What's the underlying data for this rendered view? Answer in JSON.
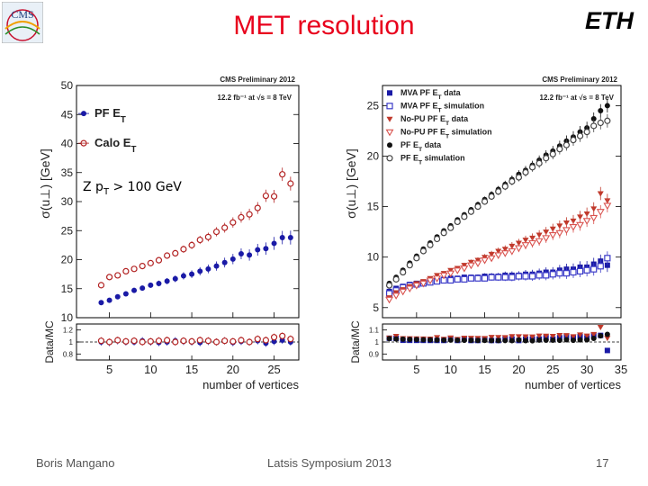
{
  "slide": {
    "title": "MET resolution",
    "footer_left": "Boris Mangano",
    "footer_center": "Latsis Symposium 2013",
    "footer_right": "17",
    "logo_left": "CMS",
    "logo_right": "ETH",
    "title_color": "#e8001c"
  },
  "chart_data": [
    {
      "type": "scatter",
      "title": "CMS Preliminary 2012",
      "lumi": "12.2 fb⁻¹ at √s = 8 TeV",
      "annotation": "Z p",
      "annotation_sub": "T",
      "annotation_tail": " > 100 GeV",
      "ylabel": "σ(u⊥) [GeV]",
      "ratio_ylabel": "Data/MC",
      "xlabel": "number of vertices",
      "xlim": [
        1,
        28
      ],
      "ylim": [
        10,
        50
      ],
      "ratio_ylim": [
        0.7,
        1.3
      ],
      "xticks": [
        5,
        10,
        15,
        20,
        25
      ],
      "yticks": [
        10,
        15,
        20,
        25,
        30,
        35,
        40,
        45,
        50
      ],
      "ratio_yticks": [
        "0.8",
        "1",
        "1.2"
      ],
      "legend_position": "top-left",
      "series": [
        {
          "name": "PF ET",
          "marker": "filled-circle",
          "color": "#1a1aa6",
          "x": [
            4,
            5,
            6,
            7,
            8,
            9,
            10,
            11,
            12,
            13,
            14,
            15,
            16,
            17,
            18,
            19,
            20,
            21,
            22,
            23,
            24,
            25,
            26,
            27
          ],
          "y": [
            12.6,
            13.0,
            13.6,
            14.1,
            14.7,
            15.1,
            15.6,
            15.9,
            16.3,
            16.7,
            17.2,
            17.5,
            18.0,
            18.4,
            18.9,
            19.5,
            20.1,
            21.0,
            20.8,
            21.7,
            21.9,
            22.8,
            23.8,
            23.8
          ],
          "ratio": [
            1.0,
            0.99,
            1.02,
            1.0,
            1.0,
            1.02,
            1.0,
            0.99,
            1.0,
            1.02,
            1.01,
            1.0,
            0.99,
            1.01,
            1.0,
            1.02,
            0.99,
            1.01,
            1.0,
            1.02,
            0.98,
            1.01,
            1.03,
            1.0
          ]
        },
        {
          "name": "Calo ET",
          "marker": "open-circle",
          "color": "#b22222",
          "x": [
            4,
            5,
            6,
            7,
            8,
            9,
            10,
            11,
            12,
            13,
            14,
            15,
            16,
            17,
            18,
            19,
            20,
            21,
            22,
            23,
            24,
            25,
            26,
            27
          ],
          "y": [
            15.6,
            17.0,
            17.3,
            18.0,
            18.4,
            18.9,
            19.4,
            19.9,
            20.7,
            21.1,
            21.8,
            22.5,
            23.4,
            23.9,
            24.8,
            25.5,
            26.4,
            27.3,
            27.8,
            28.9,
            31.0,
            30.9,
            34.7,
            33.1
          ],
          "ratio": [
            1.02,
            1.0,
            1.03,
            1.01,
            1.02,
            1.0,
            1.01,
            1.02,
            1.03,
            1.0,
            1.02,
            1.01,
            1.03,
            1.02,
            1.0,
            1.02,
            1.01,
            1.03,
            1.0,
            1.05,
            1.03,
            1.08,
            1.1,
            1.05
          ]
        }
      ]
    },
    {
      "type": "scatter",
      "title": "CMS Preliminary 2012",
      "lumi": "12.2 fb⁻¹ at √s = 8 TeV",
      "ylabel": "σ(u⊥) [GeV]",
      "ratio_ylabel": "Data/MC",
      "xlabel": "number of vertices",
      "xlim": [
        0,
        35
      ],
      "ylim": [
        4,
        27
      ],
      "ratio_ylim": [
        0.85,
        1.15
      ],
      "xticks": [
        5,
        10,
        15,
        20,
        25,
        30,
        35
      ],
      "yticks": [
        5,
        10,
        15,
        20,
        25
      ],
      "ratio_yticks": [
        "0.9",
        "1",
        "1.1"
      ],
      "legend_position": "top-left",
      "series": [
        {
          "name": "MVA PF ET data",
          "marker": "filled-square",
          "color": "#1a1aa6",
          "x": [
            1,
            2,
            3,
            4,
            5,
            6,
            7,
            8,
            9,
            10,
            11,
            12,
            13,
            14,
            15,
            16,
            17,
            18,
            19,
            20,
            21,
            22,
            23,
            24,
            25,
            26,
            27,
            28,
            29,
            30,
            31,
            32,
            33
          ],
          "y": [
            6.6,
            6.9,
            7.1,
            7.3,
            7.4,
            7.5,
            7.6,
            7.7,
            7.8,
            7.9,
            7.9,
            8.0,
            8.0,
            8.0,
            8.1,
            8.1,
            8.1,
            8.2,
            8.2,
            8.2,
            8.3,
            8.3,
            8.4,
            8.5,
            8.5,
            8.7,
            8.8,
            8.8,
            9.0,
            9.0,
            9.3,
            9.6,
            9.2
          ]
        },
        {
          "name": "MVA PF ET simulation",
          "marker": "open-square",
          "color": "#3b3bc8",
          "x": [
            1,
            2,
            3,
            4,
            5,
            6,
            7,
            8,
            9,
            10,
            11,
            12,
            13,
            14,
            15,
            16,
            17,
            18,
            19,
            20,
            21,
            22,
            23,
            24,
            25,
            26,
            27,
            28,
            29,
            30,
            31,
            32,
            33
          ],
          "y": [
            6.4,
            6.7,
            7.0,
            7.2,
            7.3,
            7.4,
            7.5,
            7.6,
            7.7,
            7.7,
            7.8,
            7.8,
            7.9,
            7.9,
            7.9,
            8.0,
            8.0,
            8.0,
            8.0,
            8.1,
            8.1,
            8.1,
            8.2,
            8.2,
            8.3,
            8.4,
            8.4,
            8.5,
            8.6,
            8.7,
            8.8,
            9.1,
            9.9
          ]
        },
        {
          "name": "No-PU PF ET data",
          "marker": "filled-triangle-down",
          "color": "#c0392b",
          "x": [
            1,
            2,
            3,
            4,
            5,
            6,
            7,
            8,
            9,
            10,
            11,
            12,
            13,
            14,
            15,
            16,
            17,
            18,
            19,
            20,
            21,
            22,
            23,
            24,
            25,
            26,
            27,
            28,
            29,
            30,
            31,
            32,
            33
          ],
          "y": [
            6.0,
            6.5,
            6.8,
            7.1,
            7.4,
            7.6,
            7.9,
            8.2,
            8.4,
            8.7,
            8.9,
            9.2,
            9.5,
            9.7,
            10.0,
            10.3,
            10.6,
            10.8,
            11.1,
            11.4,
            11.7,
            11.9,
            12.2,
            12.5,
            12.8,
            13.1,
            13.4,
            13.6,
            14.0,
            14.3,
            14.8,
            16.3,
            15.6
          ]
        },
        {
          "name": "No-PU PF ET simulation",
          "marker": "open-triangle-down",
          "color": "#d9534f",
          "x": [
            1,
            2,
            3,
            4,
            5,
            6,
            7,
            8,
            9,
            10,
            11,
            12,
            13,
            14,
            15,
            16,
            17,
            18,
            19,
            20,
            21,
            22,
            23,
            24,
            25,
            26,
            27,
            28,
            29,
            30,
            31,
            32,
            33
          ],
          "y": [
            5.8,
            6.2,
            6.6,
            6.9,
            7.2,
            7.4,
            7.7,
            7.9,
            8.2,
            8.4,
            8.7,
            8.9,
            9.2,
            9.4,
            9.7,
            9.9,
            10.2,
            10.4,
            10.6,
            10.9,
            11.2,
            11.4,
            11.6,
            11.9,
            12.2,
            12.4,
            12.7,
            13.0,
            13.2,
            13.6,
            13.9,
            14.5,
            15.1
          ]
        },
        {
          "name": "PF ET data",
          "marker": "filled-circle",
          "color": "#111111",
          "x": [
            1,
            2,
            3,
            4,
            5,
            6,
            7,
            8,
            9,
            10,
            11,
            12,
            13,
            14,
            15,
            16,
            17,
            18,
            19,
            20,
            21,
            22,
            23,
            24,
            25,
            26,
            27,
            28,
            29,
            30,
            31,
            32,
            33
          ],
          "y": [
            7.4,
            8.0,
            8.7,
            9.4,
            10.1,
            10.8,
            11.4,
            12.0,
            12.6,
            13.1,
            13.7,
            14.2,
            14.7,
            15.2,
            15.7,
            16.2,
            16.7,
            17.2,
            17.7,
            18.2,
            18.6,
            19.1,
            19.6,
            20.1,
            20.5,
            21.0,
            21.5,
            21.9,
            22.4,
            22.8,
            23.7,
            24.5,
            25.0
          ]
        },
        {
          "name": "PF ET simulation",
          "marker": "open-circle",
          "color": "#444444",
          "x": [
            1,
            2,
            3,
            4,
            5,
            6,
            7,
            8,
            9,
            10,
            11,
            12,
            13,
            14,
            15,
            16,
            17,
            18,
            19,
            20,
            21,
            22,
            23,
            24,
            25,
            26,
            27,
            28,
            29,
            30,
            31,
            32,
            33
          ],
          "y": [
            7.2,
            7.8,
            8.5,
            9.2,
            9.9,
            10.6,
            11.2,
            11.8,
            12.4,
            12.9,
            13.5,
            14.0,
            14.5,
            15.0,
            15.5,
            16.0,
            16.5,
            17.0,
            17.5,
            17.9,
            18.4,
            18.9,
            19.3,
            19.8,
            20.2,
            20.7,
            21.1,
            21.6,
            22.0,
            22.4,
            23.0,
            23.3,
            23.5
          ]
        }
      ]
    }
  ]
}
